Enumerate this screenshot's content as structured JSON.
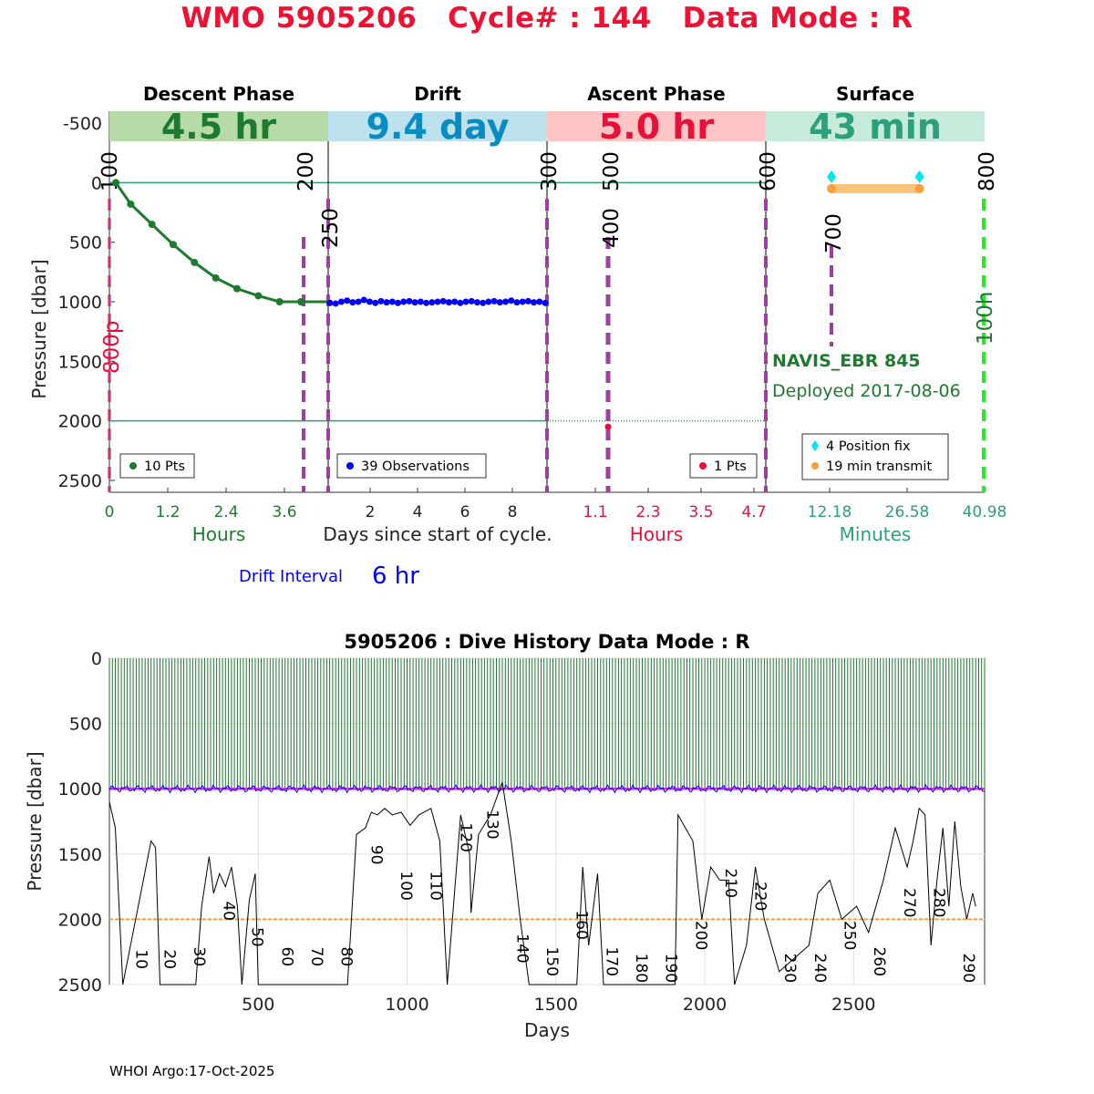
{
  "title": "WMO 5905206   Cycle# : 144   Data Mode : R",
  "footer": "WHOI Argo:17-Oct-2025",
  "colors": {
    "title": "#ee1133",
    "descent": "#1e7a2e",
    "drift": "#0000ff",
    "ascent": "#e8103a",
    "surface": "#2ca07a",
    "purple": "#9b3fa0",
    "orange": "#f4a03c",
    "cyan": "#00e6ee",
    "lime": "#22ee22"
  },
  "chart_data": [
    {
      "type": "line",
      "name": "cycle-profile",
      "ylabel": "Pressure [dbar]",
      "ylim": [
        2600,
        -600
      ],
      "yticks": [
        -500,
        0,
        500,
        1000,
        1500,
        2000,
        2500
      ],
      "xlabel_center": "Days since start of cycle.",
      "drift_interval_label": "Drift Interval",
      "drift_interval_value": "6 hr",
      "float_model": "NAVIS_EBR 845",
      "deployed": "Deployed 2017-08-06",
      "reference_lines": [
        0,
        2000
      ],
      "phases": [
        {
          "key": "descent",
          "title": "Descent Phase",
          "duration": "4.5 hr",
          "xlabel": "Hours",
          "xticks": [
            "0",
            "1.2",
            "2.4",
            "3.6"
          ],
          "xrange": [
            0,
            4.5
          ],
          "legend": "10 Pts",
          "x": [
            0.15,
            0.5,
            1.0,
            1.5,
            2.0,
            2.5,
            3.0,
            3.5,
            4.0,
            4.5
          ],
          "y": [
            0,
            180,
            350,
            520,
            670,
            800,
            890,
            950,
            1000,
            1000
          ]
        },
        {
          "key": "drift",
          "title": "Drift",
          "duration": "9.4 day",
          "xlabel": "",
          "xticks": [
            "2",
            "4",
            "6",
            "8"
          ],
          "xrange": [
            0,
            9.4
          ],
          "legend": "39 Observations",
          "values": [
            1010,
            1015,
            1000,
            990,
            1005,
            1000,
            985,
            1000,
            1010,
            995,
            1005,
            1000,
            1010,
            1000,
            995,
            1005,
            1000,
            1010,
            1005,
            1000,
            995,
            1005,
            1000,
            1010,
            1000,
            995,
            1005,
            1010,
            1000,
            995,
            1005,
            1000,
            990,
            1005,
            1000,
            995,
            1005,
            1000,
            1010
          ]
        },
        {
          "key": "ascent",
          "title": "Ascent Phase",
          "duration": "5.0 hr",
          "xlabel": "Hours",
          "xticks": [
            "1.1",
            "2.3",
            "3.5",
            "4.7"
          ],
          "xrange": [
            0,
            5.0
          ],
          "legend": "1 Pts",
          "x": [
            1.4
          ],
          "y": [
            2050
          ]
        },
        {
          "key": "surface",
          "title": "Surface",
          "duration": "43 min",
          "xlabel": "Minutes",
          "xticks": [
            "12.18",
            "26.58",
            "40.98"
          ],
          "xrange": [
            0,
            43
          ],
          "legend_fix": "4 Position fix",
          "legend_transmit": "19 min transmit",
          "fix_x": [
            12.2,
            12.2,
            29.5,
            29.5
          ],
          "transmit_x": [
            12.2,
            29.5
          ]
        }
      ],
      "vertical_markers": [
        {
          "label": "100",
          "x_day": 0.0
        },
        {
          "label": "200",
          "x_day": 0.19
        },
        {
          "label": "250",
          "x_day": 0.41
        },
        {
          "label": "300",
          "x_day": 9.79
        },
        {
          "label": "500",
          "x_day": 9.85
        },
        {
          "label": "400",
          "x_day": 9.85
        },
        {
          "label": "600",
          "x_day": 10.0
        },
        {
          "label": "700",
          "x_day": 10.1
        },
        {
          "label": "800",
          "x_day": 10.3
        }
      ],
      "side_labels": {
        "left": "800p",
        "right": "100h"
      }
    },
    {
      "type": "line",
      "name": "dive-history",
      "title": "5905206 : Dive History      Data Mode : R",
      "xlabel": "Days",
      "ylabel": "Pressure [dbar]",
      "xlim": [
        0,
        2940
      ],
      "ylim": [
        2500,
        0
      ],
      "xticks": [
        500,
        1000,
        1500,
        2000,
        2500
      ],
      "yticks": [
        0,
        500,
        1000,
        1500,
        2000,
        2500
      ],
      "park_depth": 1000,
      "reference_depth": 2000,
      "cycle_spacing_days": 10,
      "profile_depths_pts": [
        [
          0,
          1100
        ],
        [
          20,
          1300
        ],
        [
          45,
          2500
        ],
        [
          140,
          1400
        ],
        [
          155,
          1450
        ],
        [
          170,
          2500
        ],
        [
          290,
          2500
        ],
        [
          310,
          1900
        ],
        [
          335,
          1520
        ],
        [
          350,
          1800
        ],
        [
          370,
          1650
        ],
        [
          390,
          1750
        ],
        [
          410,
          1600
        ],
        [
          430,
          1900
        ],
        [
          445,
          2500
        ],
        [
          470,
          1850
        ],
        [
          490,
          1650
        ],
        [
          500,
          2500
        ],
        [
          800,
          2500
        ],
        [
          830,
          1350
        ],
        [
          860,
          1300
        ],
        [
          880,
          1180
        ],
        [
          900,
          1200
        ],
        [
          925,
          1150
        ],
        [
          950,
          1200
        ],
        [
          980,
          1180
        ],
        [
          1010,
          1280
        ],
        [
          1040,
          1200
        ],
        [
          1080,
          1150
        ],
        [
          1110,
          1400
        ],
        [
          1135,
          2500
        ],
        [
          1180,
          1200
        ],
        [
          1210,
          1500
        ],
        [
          1215,
          1950
        ],
        [
          1240,
          1350
        ],
        [
          1280,
          1200
        ],
        [
          1320,
          950
        ],
        [
          1350,
          1400
        ],
        [
          1380,
          2000
        ],
        [
          1410,
          2500
        ],
        [
          1570,
          2500
        ],
        [
          1590,
          1600
        ],
        [
          1610,
          2200
        ],
        [
          1640,
          1650
        ],
        [
          1660,
          2500
        ],
        [
          1900,
          2500
        ],
        [
          1910,
          1200
        ],
        [
          1960,
          1400
        ],
        [
          1990,
          2000
        ],
        [
          2020,
          1600
        ],
        [
          2050,
          1700
        ],
        [
          2080,
          1700
        ],
        [
          2100,
          2500
        ],
        [
          2140,
          2200
        ],
        [
          2170,
          1600
        ],
        [
          2200,
          2000
        ],
        [
          2250,
          2400
        ],
        [
          2300,
          2300
        ],
        [
          2350,
          2200
        ],
        [
          2380,
          1800
        ],
        [
          2420,
          1700
        ],
        [
          2460,
          2000
        ],
        [
          2510,
          1900
        ],
        [
          2550,
          2100
        ],
        [
          2600,
          1700
        ],
        [
          2640,
          1300
        ],
        [
          2680,
          1600
        ],
        [
          2700,
          1400
        ],
        [
          2720,
          1150
        ],
        [
          2740,
          1200
        ],
        [
          2760,
          2200
        ],
        [
          2780,
          1700
        ],
        [
          2800,
          1300
        ],
        [
          2820,
          1900
        ],
        [
          2840,
          1250
        ],
        [
          2860,
          1750
        ],
        [
          2880,
          2000
        ],
        [
          2900,
          1800
        ],
        [
          2910,
          1900
        ]
      ],
      "cycle_labels": [
        {
          "label": "10",
          "x": 90,
          "y": 2230
        },
        {
          "label": "20",
          "x": 185,
          "y": 2230
        },
        {
          "label": "30",
          "x": 285,
          "y": 2210
        },
        {
          "label": "40",
          "x": 385,
          "y": 1860
        },
        {
          "label": "50",
          "x": 480,
          "y": 2060
        },
        {
          "label": "60",
          "x": 580,
          "y": 2210
        },
        {
          "label": "70",
          "x": 680,
          "y": 2210
        },
        {
          "label": "80",
          "x": 780,
          "y": 2210
        },
        {
          "label": "90",
          "x": 880,
          "y": 1430
        },
        {
          "label": "100",
          "x": 980,
          "y": 1630
        },
        {
          "label": "110",
          "x": 1080,
          "y": 1630
        },
        {
          "label": "120",
          "x": 1180,
          "y": 1260
        },
        {
          "label": "130",
          "x": 1270,
          "y": 1160
        },
        {
          "label": "140",
          "x": 1370,
          "y": 2110
        },
        {
          "label": "150",
          "x": 1470,
          "y": 2210
        },
        {
          "label": "160",
          "x": 1570,
          "y": 1930
        },
        {
          "label": "170",
          "x": 1670,
          "y": 2210
        },
        {
          "label": "180",
          "x": 1770,
          "y": 2260
        },
        {
          "label": "190",
          "x": 1870,
          "y": 2260
        },
        {
          "label": "200",
          "x": 1970,
          "y": 2010
        },
        {
          "label": "210",
          "x": 2070,
          "y": 1610
        },
        {
          "label": "220",
          "x": 2170,
          "y": 1710
        },
        {
          "label": "230",
          "x": 2270,
          "y": 2260
        },
        {
          "label": "240",
          "x": 2370,
          "y": 2260
        },
        {
          "label": "250",
          "x": 2470,
          "y": 2010
        },
        {
          "label": "260",
          "x": 2570,
          "y": 2210
        },
        {
          "label": "270",
          "x": 2670,
          "y": 1760
        },
        {
          "label": "280",
          "x": 2770,
          "y": 1760
        },
        {
          "label": "290",
          "x": 2870,
          "y": 2260
        }
      ]
    }
  ]
}
